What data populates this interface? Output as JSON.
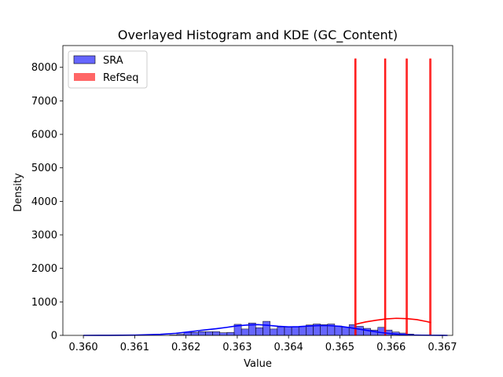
{
  "chart_data": {
    "type": "histogram",
    "title": "Overlayed Histogram and KDE (GC_Content)",
    "xlabel": "Value",
    "ylabel": "Density",
    "xlim": [
      0.3596,
      0.3672
    ],
    "ylim": [
      0,
      8650
    ],
    "xticks": [
      0.36,
      0.361,
      0.362,
      0.363,
      0.364,
      0.365,
      0.366,
      0.367
    ],
    "xtick_labels": [
      "0.360",
      "0.361",
      "0.362",
      "0.363",
      "0.364",
      "0.365",
      "0.366",
      "0.367"
    ],
    "yticks": [
      0,
      1000,
      2000,
      3000,
      4000,
      5000,
      6000,
      7000,
      8000
    ],
    "ytick_labels": [
      "0",
      "1000",
      "2000",
      "3000",
      "4000",
      "5000",
      "6000",
      "7000",
      "8000"
    ],
    "legend_position": "upper-left",
    "series": [
      {
        "name": "SRA",
        "color": "#0000ff",
        "bin_edges": [
          0.36,
          0.36014,
          0.36028,
          0.36042,
          0.36056,
          0.3607,
          0.36084,
          0.36098,
          0.36112,
          0.36126,
          0.3614,
          0.36154,
          0.36168,
          0.36182,
          0.36196,
          0.3621,
          0.36224,
          0.36238,
          0.36252,
          0.36266,
          0.3628,
          0.36294,
          0.36308,
          0.36322,
          0.36336,
          0.3635,
          0.36364,
          0.36378,
          0.36392,
          0.36406,
          0.3642,
          0.36434,
          0.36448,
          0.36462,
          0.36476,
          0.3649,
          0.36504,
          0.36518,
          0.36532,
          0.36546,
          0.3656,
          0.36574,
          0.36588,
          0.36602,
          0.36616,
          0.3663,
          0.36644,
          0.36658,
          0.36672,
          0.36686,
          0.367,
          0.36714
        ],
        "counts": [
          0,
          0,
          0,
          0,
          0,
          0,
          0,
          0,
          0,
          0,
          0,
          0,
          10,
          30,
          90,
          90,
          110,
          110,
          110,
          80,
          90,
          330,
          190,
          370,
          230,
          420,
          190,
          250,
          250,
          250,
          270,
          310,
          340,
          320,
          340,
          280,
          250,
          320,
          270,
          210,
          160,
          240,
          160,
          100,
          70,
          40,
          10,
          10,
          0,
          0,
          0
        ],
        "kde_x": [
          0.36,
          0.3605,
          0.361,
          0.3615,
          0.3618,
          0.362,
          0.3623,
          0.3626,
          0.3628,
          0.363,
          0.3632,
          0.3634,
          0.3636,
          0.3638,
          0.364,
          0.3642,
          0.3644,
          0.3646,
          0.3648,
          0.365,
          0.3652,
          0.3654,
          0.3656,
          0.3658,
          0.366,
          0.3662,
          0.3664,
          0.3666,
          0.3668,
          0.367,
          0.3671
        ],
        "kde_y": [
          0,
          2,
          8,
          30,
          60,
          95,
          150,
          200,
          240,
          285,
          310,
          320,
          300,
          270,
          255,
          260,
          280,
          295,
          290,
          270,
          230,
          180,
          130,
          85,
          50,
          25,
          12,
          6,
          3,
          1,
          0
        ]
      },
      {
        "name": "RefSeq",
        "color": "#ff0000",
        "bin_edges": [
          0.3653,
          0.36532,
          0.36588,
          0.3659,
          0.3663,
          0.36632,
          0.36676,
          0.36678
        ],
        "counts": [
          8250,
          0,
          8250,
          0,
          8250,
          0,
          8250
        ],
        "kde_x": [
          0.3653,
          0.3655,
          0.3657,
          0.3659,
          0.3661,
          0.3663,
          0.3665,
          0.3667,
          0.36678
        ],
        "kde_y": [
          330,
          400,
          450,
          490,
          510,
          500,
          470,
          410,
          380
        ]
      }
    ]
  }
}
